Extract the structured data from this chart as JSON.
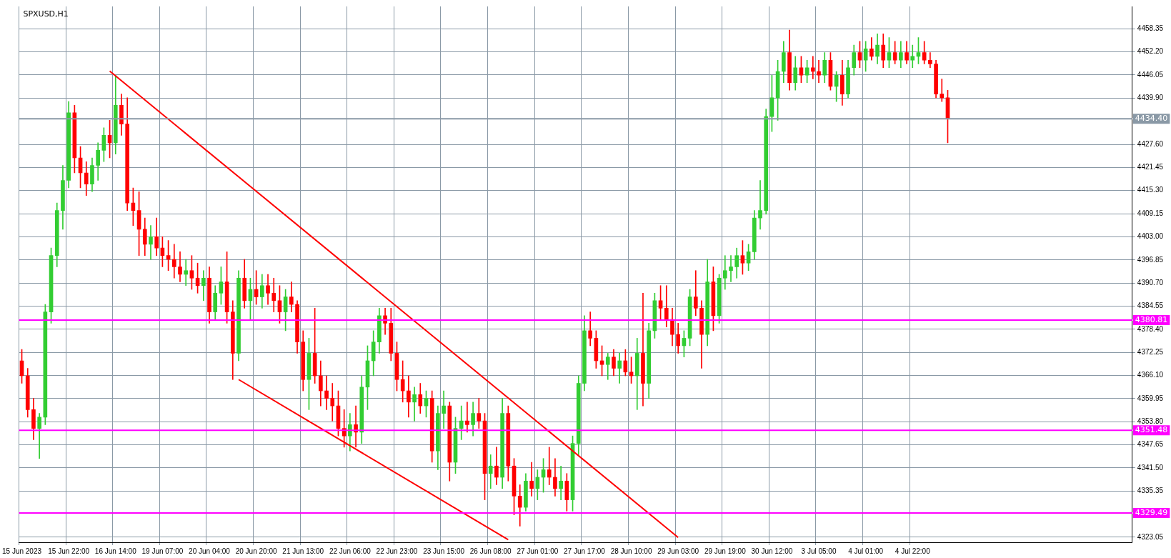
{
  "chart_data": {
    "type": "candlestick",
    "title": "SPXUSD,H1",
    "categories": [
      "15 Jun 2023",
      null,
      null,
      null,
      null,
      null,
      null,
      null,
      "15 Jun 22:00",
      null,
      null,
      null,
      null,
      null,
      null,
      null,
      "16 Jun 14:00",
      null,
      null,
      null,
      null,
      null,
      null,
      null,
      "19 Jun 07:00",
      null,
      null,
      null,
      null,
      null,
      null,
      null,
      "20 Jun 04:00",
      null,
      null,
      null,
      null,
      null,
      null,
      null,
      "20 Jun 20:00",
      null,
      null,
      null,
      null,
      null,
      null,
      null,
      "21 Jun 13:00",
      null,
      null,
      null,
      null,
      null,
      null,
      null,
      "22 Jun 06:00",
      null,
      null,
      null,
      null,
      null,
      null,
      null,
      "22 Jun 23:00",
      null,
      null,
      null,
      null,
      null,
      null,
      null,
      "23 Jun 15:00",
      null,
      null,
      null,
      null,
      null,
      null,
      null,
      "26 Jun 08:00",
      null,
      null,
      null,
      null,
      null,
      null,
      null,
      "27 Jun 01:00",
      null,
      null,
      null,
      null,
      null,
      null,
      null,
      "27 Jun 17:00",
      null,
      null,
      null,
      null,
      null,
      null,
      null,
      "28 Jun 10:00",
      null,
      null,
      null,
      null,
      null,
      null,
      null,
      "29 Jun 03:00",
      null,
      null,
      null,
      null,
      null,
      null,
      null,
      "29 Jun 19:00",
      null,
      null,
      null,
      null,
      null,
      null,
      null,
      "30 Jun 12:00",
      null,
      null,
      null,
      null,
      null,
      null,
      null,
      "3 Jul 05:00",
      null,
      null,
      null,
      null,
      null,
      null,
      null,
      "4 Jul 01:00",
      null,
      null,
      null,
      null,
      null,
      null,
      null,
      "4 Jul 22:00",
      null,
      null,
      null,
      null,
      null,
      null,
      null,
      null,
      null,
      null,
      null,
      null,
      null,
      null,
      null,
      null,
      null,
      null,
      null,
      null,
      null,
      null,
      null,
      null,
      null,
      null,
      null,
      null,
      null,
      null,
      null,
      null,
      null,
      null,
      null,
      null,
      null
    ],
    "ohlc": [
      [
        4370,
        4373,
        4364,
        4366
      ],
      [
        4366,
        4368,
        4355,
        4357
      ],
      [
        4357,
        4360,
        4349,
        4352
      ],
      [
        4352,
        4356,
        4344,
        4355
      ],
      [
        4355,
        4385,
        4353,
        4383
      ],
      [
        4383,
        4400,
        4380,
        4398
      ],
      [
        4398,
        4412,
        4395,
        4410
      ],
      [
        4410,
        4422,
        4405,
        4418
      ],
      [
        4418,
        4439,
        4416,
        4436
      ],
      [
        4436,
        4438,
        4420,
        4424
      ],
      [
        4424,
        4427,
        4416,
        4420
      ],
      [
        4420,
        4423,
        4414,
        4417
      ],
      [
        4417,
        4424,
        4415,
        4422
      ],
      [
        4422,
        4428,
        4418,
        4426
      ],
      [
        4426,
        4432,
        4423,
        4430
      ],
      [
        4430,
        4434,
        4424,
        4428
      ],
      [
        4428,
        4446,
        4425,
        4438
      ],
      [
        4438,
        4441,
        4430,
        4433
      ],
      [
        4433,
        4440,
        4410,
        4412
      ],
      [
        4412,
        4416,
        4406,
        4410
      ],
      [
        4410,
        4415,
        4398,
        4405
      ],
      [
        4405,
        4408,
        4398,
        4401
      ],
      [
        4401,
        4406,
        4397,
        4403
      ],
      [
        4403,
        4408,
        4398,
        4400
      ],
      [
        4400,
        4403,
        4395,
        4398
      ],
      [
        4398,
        4402,
        4394,
        4397
      ],
      [
        4397,
        4401,
        4392,
        4395
      ],
      [
        4395,
        4399,
        4391,
        4393
      ],
      [
        4393,
        4397,
        4390,
        4394
      ],
      [
        4394,
        4398,
        4389,
        4392
      ],
      [
        4392,
        4396,
        4388,
        4390
      ],
      [
        4390,
        4394,
        4386,
        4392
      ],
      [
        4392,
        4395,
        4380,
        4383
      ],
      [
        4383,
        4390,
        4381,
        4388
      ],
      [
        4388,
        4395,
        4385,
        4391
      ],
      [
        4391,
        4399,
        4380,
        4383
      ],
      [
        4383,
        4386,
        4365,
        4372
      ],
      [
        4372,
        4394,
        4370,
        4392
      ],
      [
        4392,
        4397,
        4384,
        4386
      ],
      [
        4386,
        4392,
        4381,
        4389
      ],
      [
        4389,
        4394,
        4385,
        4387
      ],
      [
        4387,
        4393,
        4384,
        4390
      ],
      [
        4390,
        4393,
        4385,
        4388
      ],
      [
        4388,
        4392,
        4383,
        4386
      ],
      [
        4386,
        4390,
        4380,
        4383
      ],
      [
        4383,
        4389,
        4378,
        4387
      ],
      [
        4387,
        4391,
        4383,
        4385
      ],
      [
        4385,
        4386,
        4372,
        4375
      ],
      [
        4375,
        4378,
        4362,
        4365
      ],
      [
        4365,
        4376,
        4357,
        4372
      ],
      [
        4372,
        4384,
        4364,
        4366
      ],
      [
        4366,
        4370,
        4358,
        4362
      ],
      [
        4362,
        4366,
        4357,
        4360
      ],
      [
        4360,
        4364,
        4354,
        4358
      ],
      [
        4358,
        4362,
        4350,
        4352
      ],
      [
        4352,
        4357,
        4347,
        4350
      ],
      [
        4350,
        4356,
        4346,
        4353
      ],
      [
        4353,
        4358,
        4347,
        4351
      ],
      [
        4351,
        4366,
        4348,
        4363
      ],
      [
        4363,
        4374,
        4357,
        4370
      ],
      [
        4370,
        4378,
        4366,
        4375
      ],
      [
        4375,
        4384,
        4372,
        4382
      ],
      [
        4382,
        4384,
        4377,
        4380
      ],
      [
        4380,
        4384,
        4370,
        4372
      ],
      [
        4372,
        4375,
        4362,
        4365
      ],
      [
        4365,
        4370,
        4359,
        4362
      ],
      [
        4362,
        4366,
        4355,
        4359
      ],
      [
        4359,
        4363,
        4354,
        4361
      ],
      [
        4361,
        4364,
        4356,
        4358
      ],
      [
        4358,
        4362,
        4355,
        4360
      ],
      [
        4360,
        4362,
        4343,
        4346
      ],
      [
        4346,
        4358,
        4341,
        4356
      ],
      [
        4356,
        4362,
        4352,
        4358
      ],
      [
        4358,
        4359,
        4338,
        4343
      ],
      [
        4343,
        4355,
        4340,
        4352
      ],
      [
        4352,
        4358,
        4349,
        4354
      ],
      [
        4354,
        4359,
        4351,
        4353
      ],
      [
        4353,
        4359,
        4350,
        4356
      ],
      [
        4356,
        4360,
        4352,
        4354
      ],
      [
        4354,
        4356,
        4333,
        4340
      ],
      [
        4340,
        4345,
        4336,
        4342
      ],
      [
        4342,
        4347,
        4337,
        4339
      ],
      [
        4339,
        4360,
        4336,
        4356
      ],
      [
        4356,
        4358,
        4338,
        4342
      ],
      [
        4342,
        4344,
        4329,
        4334
      ],
      [
        4334,
        4337,
        4326,
        4331
      ],
      [
        4331,
        4340,
        4330,
        4338
      ],
      [
        4338,
        4343,
        4334,
        4336
      ],
      [
        4336,
        4341,
        4333,
        4339
      ],
      [
        4339,
        4344,
        4335,
        4341
      ],
      [
        4341,
        4347,
        4337,
        4339
      ],
      [
        4339,
        4344,
        4334,
        4336
      ],
      [
        4336,
        4342,
        4333,
        4338
      ],
      [
        4338,
        4340,
        4330,
        4333
      ],
      [
        4333,
        4350,
        4330,
        4348
      ],
      [
        4348,
        4366,
        4345,
        4364
      ],
      [
        4364,
        4382,
        4362,
        4378
      ],
      [
        4378,
        4383,
        4374,
        4376
      ],
      [
        4376,
        4378,
        4368,
        4370
      ],
      [
        4370,
        4374,
        4366,
        4369
      ],
      [
        4369,
        4372,
        4365,
        4371
      ],
      [
        4371,
        4373,
        4366,
        4368
      ],
      [
        4368,
        4372,
        4364,
        4370
      ],
      [
        4370,
        4373,
        4366,
        4367
      ],
      [
        4367,
        4371,
        4364,
        4366
      ],
      [
        4366,
        4376,
        4357,
        4372
      ],
      [
        4372,
        4388,
        4358,
        4364
      ],
      [
        4364,
        4380,
        4360,
        4378
      ],
      [
        4378,
        4388,
        4376,
        4386
      ],
      [
        4386,
        4390,
        4381,
        4384
      ],
      [
        4384,
        4390,
        4379,
        4381
      ],
      [
        4381,
        4384,
        4374,
        4377
      ],
      [
        4377,
        4380,
        4372,
        4374
      ],
      [
        4374,
        4378,
        4371,
        4376
      ],
      [
        4376,
        4389,
        4374,
        4387
      ],
      [
        4387,
        4394,
        4382,
        4384
      ],
      [
        4384,
        4386,
        4368,
        4377
      ],
      [
        4377,
        4397,
        4374,
        4391
      ],
      [
        4391,
        4395,
        4378,
        4382
      ],
      [
        4382,
        4393,
        4380,
        4392
      ],
      [
        4392,
        4398,
        4389,
        4394
      ],
      [
        4394,
        4398,
        4391,
        4395
      ],
      [
        4395,
        4400,
        4392,
        4398
      ],
      [
        4398,
        4402,
        4393,
        4396
      ],
      [
        4396,
        4401,
        4394,
        4399
      ],
      [
        4399,
        4410,
        4397,
        4408
      ],
      [
        4408,
        4418,
        4405,
        4410
      ],
      [
        4410,
        4437,
        4409,
        4435
      ],
      [
        4435,
        4446,
        4431,
        4440
      ],
      [
        4440,
        4450,
        4434,
        4447
      ],
      [
        4447,
        4455,
        4444,
        4452
      ],
      [
        4452,
        4458,
        4442,
        4444
      ],
      [
        4444,
        4451,
        4442,
        4448
      ],
      [
        4448,
        4451,
        4444,
        4446
      ],
      [
        4446,
        4450,
        4444,
        4448
      ],
      [
        4448,
        4451,
        4445,
        4447
      ],
      [
        4447,
        4450,
        4444,
        4446
      ],
      [
        4446,
        4452,
        4444,
        4450
      ],
      [
        4450,
        4452,
        4442,
        4443
      ],
      [
        4443,
        4447,
        4439,
        4446
      ],
      [
        4446,
        4450,
        4438,
        4441
      ],
      [
        4441,
        4450,
        4440,
        4448
      ],
      [
        4448,
        4454,
        4446,
        4452
      ],
      [
        4452,
        4455,
        4448,
        4450
      ],
      [
        4450,
        4455,
        4447,
        4453
      ],
      [
        4453,
        4456,
        4450,
        4451
      ],
      [
        4451,
        4457,
        4449,
        4454
      ],
      [
        4454,
        4457,
        4448,
        4450
      ],
      [
        4450,
        4456,
        4448,
        4452
      ],
      [
        4452,
        4455,
        4449,
        4450
      ],
      [
        4450,
        4455,
        4448,
        4452
      ],
      [
        4452,
        4455,
        4449,
        4450
      ],
      [
        4450,
        4454,
        4448,
        4451
      ],
      [
        4451,
        4456,
        4449,
        4452
      ],
      [
        4452,
        4455,
        4449,
        4450
      ],
      [
        4450,
        4452,
        4448,
        4449
      ],
      [
        4449,
        4450,
        4440,
        4441
      ],
      [
        4441,
        4445,
        4439,
        4440
      ],
      [
        4440,
        4442,
        4428,
        4434.4
      ],
      null,
      null,
      null,
      null,
      null,
      null,
      null,
      null,
      null,
      null,
      null,
      null,
      null,
      null,
      null,
      null,
      null,
      null,
      null,
      null,
      null,
      null,
      null,
      null,
      null,
      null,
      null,
      null,
      null,
      null,
      null
    ],
    "colors": [
      "#ff0000",
      "#ff0000",
      "#ff0000",
      "#32cd32",
      "#32cd32",
      "#32cd32",
      "#32cd32",
      "#32cd32",
      "#32cd32",
      "#ff0000",
      "#ff0000",
      "#ff0000",
      "#32cd32",
      "#32cd32",
      "#32cd32",
      "#ff0000",
      "#32cd32",
      "#ff0000",
      "#ff0000",
      "#ff0000",
      "#ff0000",
      "#ff0000",
      "#32cd32",
      "#ff0000",
      "#ff0000",
      "#ff0000",
      "#ff0000",
      "#ff0000",
      "#32cd32",
      "#ff0000",
      "#ff0000",
      "#32cd32",
      "#ff0000",
      "#32cd32",
      "#32cd32",
      "#ff0000",
      "#ff0000",
      "#32cd32",
      "#ff0000",
      "#32cd32",
      "#ff0000",
      "#32cd32",
      "#ff0000",
      "#ff0000",
      "#ff0000",
      "#32cd32",
      "#ff0000",
      "#ff0000",
      "#ff0000",
      "#32cd32",
      "#ff0000",
      "#ff0000",
      "#ff0000",
      "#ff0000",
      "#ff0000",
      "#ff0000",
      "#32cd32",
      "#ff0000",
      "#32cd32",
      "#32cd32",
      "#32cd32",
      "#32cd32",
      "#ff0000",
      "#ff0000",
      "#ff0000",
      "#ff0000",
      "#ff0000",
      "#32cd32",
      "#ff0000",
      "#32cd32",
      "#ff0000",
      "#32cd32",
      "#32cd32",
      "#ff0000",
      "#32cd32",
      "#32cd32",
      "#ff0000",
      "#32cd32",
      "#ff0000",
      "#ff0000",
      "#32cd32",
      "#ff0000",
      "#32cd32",
      "#ff0000",
      "#ff0000",
      "#ff0000",
      "#32cd32",
      "#ff0000",
      "#32cd32",
      "#32cd32",
      "#ff0000",
      "#ff0000",
      "#32cd32",
      "#ff0000",
      "#32cd32",
      "#32cd32",
      "#32cd32",
      "#ff0000",
      "#ff0000",
      "#ff0000",
      "#32cd32",
      "#ff0000",
      "#32cd32",
      "#ff0000",
      "#ff0000",
      "#32cd32",
      "#ff0000",
      "#32cd32",
      "#32cd32",
      "#ff0000",
      "#ff0000",
      "#ff0000",
      "#ff0000",
      "#32cd32",
      "#32cd32",
      "#ff0000",
      "#ff0000",
      "#32cd32",
      "#ff0000",
      "#32cd32",
      "#32cd32",
      "#32cd32",
      "#32cd32",
      "#ff0000",
      "#32cd32",
      "#32cd32",
      "#32cd32",
      "#32cd32",
      "#32cd32",
      "#32cd32",
      "#32cd32",
      "#ff0000",
      "#32cd32",
      "#ff0000",
      "#32cd32",
      "#ff0000",
      "#ff0000",
      "#32cd32",
      "#ff0000",
      "#32cd32",
      "#ff0000",
      "#32cd32",
      "#32cd32",
      "#ff0000",
      "#32cd32",
      "#ff0000",
      "#32cd32",
      "#ff0000",
      "#32cd32",
      "#ff0000",
      "#32cd32",
      "#ff0000",
      "#32cd32",
      "#32cd32",
      "#ff0000",
      "#ff0000",
      "#ff0000",
      "#ff0000",
      "#ff0000",
      null,
      null,
      null,
      null,
      null,
      null,
      null,
      null,
      null,
      null,
      null,
      null,
      null,
      null,
      null,
      null,
      null,
      null,
      null,
      null,
      null,
      null,
      null,
      null,
      null,
      null,
      null,
      null,
      null,
      null,
      null
    ],
    "series": [
      {
        "type": "line",
        "color": "#ff0000",
        "values": [
          null,
          null,
          null,
          null,
          null,
          null,
          null,
          null,
          null,
          null,
          null,
          null,
          null,
          null,
          null,
          4447.1,
          null,
          null,
          null,
          null,
          null,
          null,
          null,
          null,
          null,
          null,
          null,
          null,
          null,
          null,
          null,
          null,
          null,
          null,
          null,
          null,
          null,
          null,
          null,
          null,
          null,
          null,
          null,
          null,
          null,
          null,
          null,
          null,
          null,
          null,
          null,
          null,
          null,
          null,
          null,
          null,
          null,
          null,
          null,
          null,
          null,
          null,
          null,
          null,
          null,
          null,
          null,
          null,
          null,
          null,
          null,
          null,
          null,
          null,
          null,
          null,
          null,
          null,
          null,
          null,
          null,
          null,
          null,
          null,
          null,
          null,
          null,
          null,
          null,
          null,
          null,
          null,
          null,
          null,
          null,
          null,
          null,
          null,
          null,
          null,
          null,
          null,
          null,
          null,
          null,
          null,
          null,
          null,
          null,
          null,
          null,
          null,
          4323.0,
          null,
          null,
          null,
          null,
          null,
          null,
          null,
          null,
          null,
          null,
          null,
          null,
          null,
          null,
          null,
          null,
          null,
          null,
          null,
          null,
          null,
          null,
          null,
          null,
          null,
          null,
          null,
          null,
          null,
          null,
          null,
          null,
          null,
          null,
          null,
          null,
          null,
          null,
          null,
          null,
          null,
          null,
          null,
          null,
          null,
          null,
          null,
          null,
          null,
          null,
          null,
          null,
          null,
          null,
          null,
          null,
          null,
          null,
          null,
          null,
          null,
          null,
          null,
          null,
          null,
          null,
          null,
          null,
          null,
          null,
          null,
          null,
          null,
          null,
          null,
          null,
          null
        ]
      },
      {
        "type": "line",
        "color": "#ff0000",
        "values": [
          null,
          null,
          null,
          null,
          null,
          null,
          null,
          null,
          null,
          null,
          null,
          null,
          null,
          null,
          null,
          null,
          null,
          null,
          null,
          null,
          null,
          null,
          null,
          null,
          null,
          null,
          null,
          null,
          null,
          null,
          null,
          null,
          null,
          null,
          null,
          null,
          null,
          4365.0,
          null,
          null,
          null,
          null,
          null,
          null,
          null,
          null,
          null,
          null,
          null,
          null,
          null,
          null,
          null,
          null,
          null,
          null,
          null,
          null,
          null,
          null,
          null,
          null,
          null,
          null,
          null,
          null,
          null,
          null,
          null,
          null,
          null,
          null,
          null,
          null,
          null,
          null,
          null,
          null,
          null,
          null,
          null,
          null,
          null,
          4322.4,
          null,
          null,
          null,
          null,
          null,
          null,
          null,
          null,
          null,
          null,
          null,
          null,
          null,
          null,
          null,
          null,
          null,
          null,
          null,
          null,
          null,
          null,
          null,
          null,
          null,
          null,
          null,
          null,
          null,
          null,
          null,
          null,
          null,
          null,
          null,
          null,
          null,
          null,
          null,
          null,
          null,
          null,
          null,
          null,
          null,
          null,
          null,
          null,
          null,
          null,
          null,
          null,
          null,
          null,
          null,
          null,
          null,
          null,
          null,
          null,
          null,
          null,
          null,
          null,
          null,
          null,
          null,
          null,
          null,
          null,
          null,
          null,
          null,
          null,
          null,
          null,
          null,
          null,
          null,
          null,
          null,
          null,
          null,
          null,
          null,
          null,
          null,
          null,
          null,
          null,
          null,
          null,
          null,
          null,
          null,
          null,
          null,
          null,
          null,
          null,
          null,
          null,
          null,
          null,
          null,
          null
        ]
      }
    ],
    "ylim": [
      4321.7,
      4464.3
    ],
    "yticks": [
      {
        "value": 4323.05,
        "label": "4323.05"
      },
      {
        "value": 4335.35,
        "label": "4335.35"
      },
      {
        "value": 4341.5,
        "label": "4341.50"
      },
      {
        "value": 4347.65,
        "label": "4347.65"
      },
      {
        "value": 4353.8,
        "label": "4353.80"
      },
      {
        "value": 4359.95,
        "label": "4359.95"
      },
      {
        "value": 4366.1,
        "label": "4366.10"
      },
      {
        "value": 4372.25,
        "label": "4372.25"
      },
      {
        "value": 4378.4,
        "label": "4378.40"
      },
      {
        "value": 4384.55,
        "label": "4384.55"
      },
      {
        "value": 4390.7,
        "label": "4390.70"
      },
      {
        "value": 4396.85,
        "label": "4396.85"
      },
      {
        "value": 4403.0,
        "label": "4403.00"
      },
      {
        "value": 4409.15,
        "label": "4409.15"
      },
      {
        "value": 4415.3,
        "label": "4415.30"
      },
      {
        "value": 4421.45,
        "label": "4421.45"
      },
      {
        "value": 4427.6,
        "label": "4427.60"
      },
      {
        "value": 4439.9,
        "label": "4439.90"
      },
      {
        "value": 4446.05,
        "label": "4446.05"
      },
      {
        "value": 4452.2,
        "label": "4452.20"
      },
      {
        "value": 4458.35,
        "label": "4458.35"
      }
    ],
    "ref_lines": [
      {
        "axis": "y",
        "value": 4434.4,
        "label": "4434.40",
        "color": "#8a99a6"
      },
      {
        "axis": "y",
        "value": 4380.81,
        "label": "4380.81",
        "color": "#ff00ff"
      },
      {
        "axis": "y",
        "value": 4351.48,
        "label": "4351.48",
        "color": "#ff00ff"
      },
      {
        "axis": "y",
        "value": 4329.49,
        "label": "4329.49",
        "color": "#ff00ff"
      }
    ],
    "grid": true,
    "legend": false
  }
}
